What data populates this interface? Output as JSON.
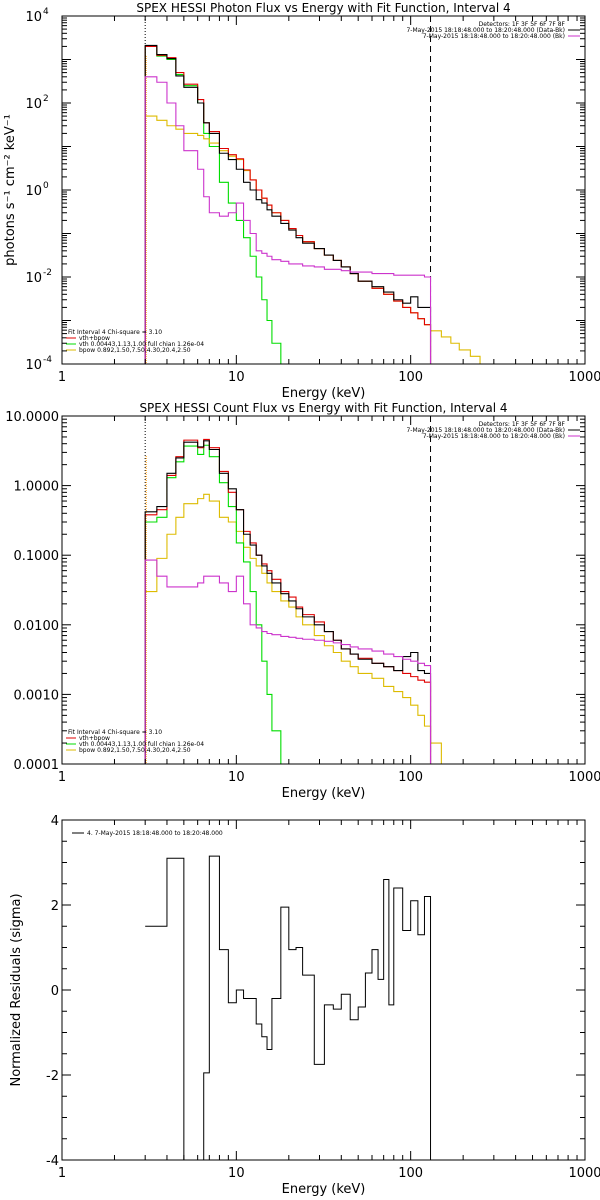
{
  "colors": {
    "total": "#000000",
    "model": "#e00000",
    "vth": "#00dd00",
    "bpow": "#ddbb00",
    "bk": "#cc33cc",
    "limit": "#ff9900"
  },
  "chart_data": [
    {
      "type": "line",
      "title": "SPEX HESSI Photon Flux vs Energy with Fit Function, Interval 4",
      "xlabel": "Energy (keV)",
      "ylabel_html": "photons s⁻¹ cm⁻² keV⁻¹",
      "xscale": "log",
      "yscale": "log",
      "xlim": [
        1,
        1000
      ],
      "ylim": [
        0.0001,
        10000
      ],
      "xticks": [
        {
          "v": 1,
          "t": "1"
        },
        {
          "v": 10,
          "t": "10"
        },
        {
          "v": 100,
          "t": "100"
        },
        {
          "v": 1000,
          "t": "1000"
        }
      ],
      "yticks": [
        {
          "v": 10000,
          "base": "10",
          "exp": "4"
        },
        {
          "v": 100,
          "base": "10",
          "exp": "2"
        },
        {
          "v": 1,
          "base": "10",
          "exp": "0"
        },
        {
          "v": 0.01,
          "base": "10",
          "exp": "-2"
        },
        {
          "v": 0.0001,
          "base": "10",
          "exp": "-4"
        }
      ],
      "vlines": [
        {
          "x": 3,
          "style": "dotted"
        },
        {
          "x": 130,
          "style": "dashed"
        }
      ],
      "legend_top": [
        "Detectors: 1F 3F 5F 6F 7F 8F",
        "7-May-2015 18:18:48.000 to 18:20:48.000 (Data-Bk)",
        "7-May-2015 18:18:48.000 to 18:20:48.000 (Bk)"
      ],
      "legend_bottom": [
        "Fit Interval 4   Chi-square = 3.10",
        "vth+bpow",
        "vth 0.00443,1.13,1.00  full chian 1.26e-04",
        "bpow 0.892,1.50,7.50,4.30,20.4,2.50"
      ],
      "series": [
        {
          "role": "vth",
          "edges": [
            3,
            3.5,
            4,
            4.5,
            5,
            6,
            6.5,
            7,
            8,
            9,
            10,
            11,
            12,
            13,
            14,
            15,
            16,
            18,
            20
          ],
          "values": [
            2000,
            1200,
            1000,
            450,
            250,
            100,
            20,
            10,
            1.5,
            0.5,
            0.2,
            0.08,
            0.03,
            0.01,
            0.003,
            0.001,
            0.0003,
            0.0001
          ]
        },
        {
          "role": "bpow",
          "edges": [
            3,
            3.5,
            4,
            4.5,
            5,
            6,
            6.5,
            7,
            8,
            9,
            10,
            11,
            12,
            13,
            14,
            15,
            16,
            18,
            20,
            22,
            24,
            28,
            32,
            36,
            40,
            45,
            50,
            60,
            70,
            80,
            90,
            100,
            110,
            120,
            130,
            150,
            170,
            190,
            220,
            250,
            280
          ],
          "values": [
            50,
            40,
            30,
            25,
            20,
            18,
            15,
            12,
            8,
            6,
            5,
            2.8,
            1.7,
            1.0,
            0.65,
            0.45,
            0.3,
            0.2,
            0.13,
            0.09,
            0.065,
            0.045,
            0.032,
            0.024,
            0.017,
            0.012,
            0.008,
            0.0055,
            0.004,
            0.0028,
            0.002,
            0.0015,
            0.0011,
            0.0008,
            0.00058,
            0.00042,
            0.0003,
            0.00021,
            0.00015,
            0.0001
          ]
        },
        {
          "role": "model",
          "edges": [
            3,
            3.5,
            4,
            4.5,
            5,
            6,
            6.5,
            7,
            8,
            9,
            10,
            11,
            12,
            13,
            14,
            15,
            16,
            18,
            20,
            22,
            24,
            28,
            32,
            36,
            40,
            45,
            50,
            60,
            70,
            80,
            90,
            100,
            110,
            120,
            130
          ],
          "values": [
            2000,
            1250,
            1100,
            500,
            270,
            120,
            35,
            22,
            9,
            6.5,
            5.2,
            2.9,
            1.7,
            1.0,
            0.65,
            0.45,
            0.3,
            0.2,
            0.13,
            0.09,
            0.065,
            0.045,
            0.032,
            0.024,
            0.017,
            0.012,
            0.008,
            0.0055,
            0.004,
            0.0028,
            0.002,
            0.0015,
            0.0011,
            0.0008
          ]
        },
        {
          "role": "total",
          "edges": [
            3,
            3.5,
            4,
            4.5,
            5,
            6,
            6.5,
            7,
            8,
            9,
            10,
            11,
            12,
            13,
            14,
            15,
            16,
            18,
            20,
            22,
            24,
            28,
            32,
            36,
            40,
            45,
            50,
            60,
            70,
            80,
            90,
            100,
            110,
            120,
            130
          ],
          "values": [
            2100,
            1300,
            1050,
            420,
            230,
            100,
            35,
            20,
            7,
            5,
            3,
            1.5,
            1.0,
            0.6,
            0.5,
            0.35,
            0.25,
            0.17,
            0.12,
            0.08,
            0.06,
            0.045,
            0.032,
            0.024,
            0.017,
            0.012,
            0.008,
            0.006,
            0.0045,
            0.003,
            0.0025,
            0.0035,
            0.002,
            0.002
          ]
        },
        {
          "role": "bk",
          "edges": [
            3,
            3.5,
            4,
            4.5,
            5,
            6,
            6.5,
            7,
            8,
            9,
            10,
            11,
            12,
            13,
            14,
            15,
            16,
            18,
            20,
            22,
            24,
            28,
            32,
            36,
            40,
            45,
            50,
            60,
            70,
            80,
            90,
            100,
            110,
            120,
            130
          ],
          "values": [
            400,
            300,
            100,
            30,
            8,
            3,
            0.7,
            0.3,
            0.25,
            0.3,
            0.5,
            0.2,
            0.1,
            0.04,
            0.035,
            0.03,
            0.025,
            0.023,
            0.02,
            0.02,
            0.018,
            0.017,
            0.015,
            0.015,
            0.014,
            0.013,
            0.013,
            0.012,
            0.012,
            0.011,
            0.011,
            0.011,
            0.011,
            0.01
          ]
        }
      ]
    },
    {
      "type": "line",
      "title": "SPEX HESSI Count Flux vs Energy with Fit Function, Interval 4",
      "xlabel": "Energy (keV)",
      "ylabel_html": "",
      "xscale": "log",
      "yscale": "log",
      "xlim": [
        1,
        1000
      ],
      "ylim": [
        0.0001,
        10
      ],
      "xticks": [
        {
          "v": 1,
          "t": "1"
        },
        {
          "v": 10,
          "t": "10"
        },
        {
          "v": 100,
          "t": "100"
        },
        {
          "v": 1000,
          "t": "1000"
        }
      ],
      "yticks": [
        {
          "v": 10,
          "t": "10.0000"
        },
        {
          "v": 1,
          "t": "1.0000"
        },
        {
          "v": 0.1,
          "t": "0.1000"
        },
        {
          "v": 0.01,
          "t": "0.0100"
        },
        {
          "v": 0.001,
          "t": "0.0010"
        },
        {
          "v": 0.0001,
          "t": "0.0001"
        }
      ],
      "vlines": [
        {
          "x": 3,
          "style": "dotted"
        },
        {
          "x": 130,
          "style": "dashed"
        }
      ],
      "legend_top": [
        "Detectors: 1F 3F 5F 6F 7F 8F",
        "7-May-2015 18:18:48.000 to 18:20:48.000 (Data-Bk)",
        "7-May-2015 18:18:48.000 to 18:20:48.000 (Bk)"
      ],
      "legend_bottom": [
        "Fit Interval 4   Chi-square = 3.10",
        "vth+bpow",
        "vth 0.00443,1.13,1.00  full chian 1.26e-04",
        "bpow 0.892,1.50,7.50,4.30,20.4,2.50"
      ],
      "series": [
        {
          "role": "bpow",
          "edges": [
            3,
            3.5,
            4,
            4.5,
            5,
            6,
            6.5,
            7,
            8,
            9,
            10,
            11,
            12,
            13,
            14,
            15,
            16,
            18,
            20,
            22,
            24,
            28,
            32,
            36,
            40,
            45,
            50,
            60,
            70,
            80,
            90,
            100,
            110,
            120,
            130,
            150,
            180
          ],
          "values": [
            0.03,
            0.09,
            0.2,
            0.35,
            0.55,
            0.65,
            0.75,
            0.6,
            0.35,
            0.3,
            0.22,
            0.13,
            0.09,
            0.07,
            0.055,
            0.04,
            0.03,
            0.022,
            0.018,
            0.013,
            0.01,
            0.007,
            0.005,
            0.004,
            0.003,
            0.0025,
            0.002,
            0.0017,
            0.0013,
            0.0011,
            0.0009,
            0.0007,
            0.0005,
            0.00035,
            0.0002,
            0.0001
          ]
        },
        {
          "role": "vth",
          "edges": [
            3,
            3.5,
            4,
            4.5,
            5,
            6,
            6.5,
            7,
            8,
            9,
            10,
            11,
            12,
            13,
            14,
            15,
            16,
            18,
            20
          ],
          "values": [
            0.3,
            0.35,
            1.3,
            2.2,
            3.7,
            2.8,
            3.8,
            2.6,
            1.1,
            0.5,
            0.15,
            0.08,
            0.03,
            0.01,
            0.003,
            0.001,
            0.0003,
            0.0001
          ]
        },
        {
          "role": "model",
          "edges": [
            3,
            3.5,
            4,
            4.5,
            5,
            6,
            6.5,
            7,
            8,
            9,
            10,
            11,
            12,
            13,
            14,
            15,
            16,
            18,
            20,
            22,
            24,
            28,
            32,
            36,
            40,
            45,
            50,
            60,
            70,
            80,
            90,
            100,
            110,
            120,
            130
          ],
          "values": [
            0.38,
            0.45,
            1.4,
            2.6,
            4.5,
            3.5,
            4.6,
            3.5,
            1.6,
            0.8,
            0.45,
            0.22,
            0.15,
            0.1,
            0.075,
            0.06,
            0.045,
            0.03,
            0.025,
            0.018,
            0.014,
            0.011,
            0.008,
            0.006,
            0.0045,
            0.0038,
            0.0033,
            0.0028,
            0.0025,
            0.0022,
            0.002,
            0.0018,
            0.0016,
            0.0015
          ]
        },
        {
          "role": "total",
          "edges": [
            3,
            3.5,
            4,
            4.5,
            5,
            6,
            6.5,
            7,
            8,
            9,
            10,
            11,
            12,
            13,
            14,
            15,
            16,
            18,
            20,
            22,
            24,
            28,
            32,
            36,
            40,
            45,
            50,
            60,
            70,
            80,
            90,
            100,
            110,
            120,
            130
          ],
          "values": [
            0.42,
            0.5,
            1.5,
            2.5,
            4.2,
            3.6,
            4.4,
            3.3,
            1.5,
            0.9,
            0.45,
            0.2,
            0.14,
            0.1,
            0.07,
            0.055,
            0.04,
            0.028,
            0.022,
            0.017,
            0.013,
            0.01,
            0.008,
            0.006,
            0.0045,
            0.0038,
            0.0032,
            0.0028,
            0.0025,
            0.0022,
            0.0035,
            0.004,
            0.0022,
            0.002
          ]
        },
        {
          "role": "bk",
          "edges": [
            3,
            3.5,
            4,
            4.5,
            5,
            6,
            6.5,
            7,
            8,
            9,
            10,
            11,
            12,
            13,
            14,
            15,
            16,
            18,
            20,
            22,
            24,
            28,
            32,
            36,
            40,
            45,
            50,
            60,
            70,
            80,
            90,
            100,
            110,
            120,
            130
          ],
          "values": [
            0.085,
            0.05,
            0.035,
            0.035,
            0.035,
            0.04,
            0.05,
            0.05,
            0.04,
            0.03,
            0.05,
            0.02,
            0.01,
            0.009,
            0.008,
            0.0075,
            0.0072,
            0.0068,
            0.0066,
            0.0064,
            0.0062,
            0.006,
            0.0058,
            0.0055,
            0.0052,
            0.0048,
            0.0045,
            0.0042,
            0.0038,
            0.0035,
            0.0032,
            0.003,
            0.0028,
            0.0026
          ]
        }
      ]
    },
    {
      "type": "line",
      "title": "",
      "xlabel": "Energy (keV)",
      "ylabel": "Normalized Residuals (sigma)",
      "xscale": "log",
      "yscale": "linear",
      "xlim": [
        1,
        1000
      ],
      "ylim": [
        -4,
        4
      ],
      "xticks": [
        {
          "v": 1,
          "t": "1"
        },
        {
          "v": 10,
          "t": "10"
        },
        {
          "v": 100,
          "t": "100"
        },
        {
          "v": 1000,
          "t": "1000"
        }
      ],
      "yticks": [
        {
          "v": 4,
          "t": "4"
        },
        {
          "v": 2,
          "t": "2"
        },
        {
          "v": 0,
          "t": "0"
        },
        {
          "v": -2,
          "t": "-2"
        },
        {
          "v": -4,
          "t": "-4"
        }
      ],
      "legend": "4.  7-May-2015 18:18:48.000 to 18:20:48.000",
      "residuals": {
        "edges": [
          3,
          3.5,
          4,
          4.5,
          5,
          6,
          6.5,
          7,
          7.5,
          8,
          9,
          10,
          11,
          12,
          13,
          14,
          15,
          16,
          18,
          20,
          22,
          24,
          28,
          32,
          36,
          40,
          45,
          50,
          55,
          60,
          65,
          70,
          75,
          80,
          90,
          100,
          110,
          120,
          130
        ],
        "values": [
          1.5,
          1.5,
          3.1,
          3.1,
          -4.1,
          -4.1,
          -1.95,
          3.15,
          3.15,
          0.95,
          -0.3,
          0.0,
          -0.2,
          -0.2,
          -0.8,
          -1.1,
          -1.4,
          -0.2,
          1.95,
          0.95,
          1.0,
          0.35,
          -1.75,
          -0.35,
          -0.45,
          -0.1,
          -0.7,
          -0.4,
          0.4,
          0.95,
          0.25,
          2.6,
          -0.35,
          2.4,
          1.4,
          2.1,
          1.3,
          2.2
        ]
      }
    }
  ]
}
